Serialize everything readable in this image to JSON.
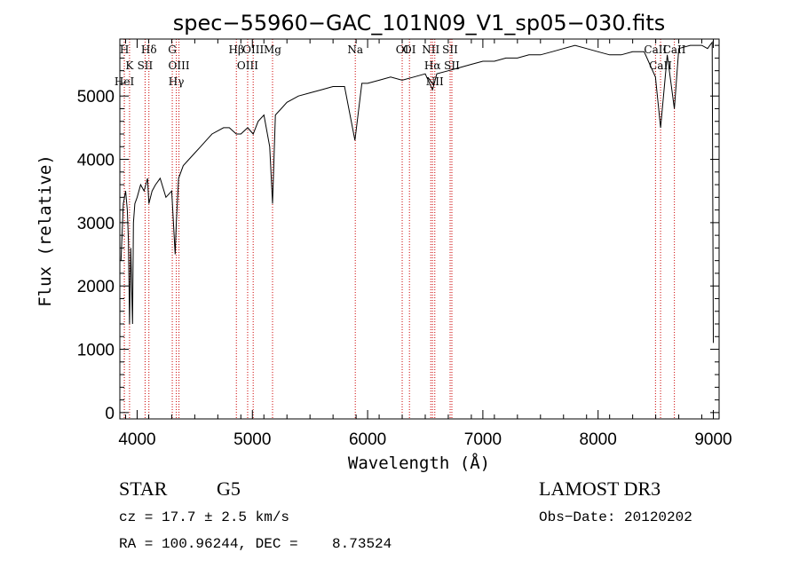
{
  "chart_data": {
    "type": "line",
    "title": "spec−55960−GAC_101N09_V1_sp05−030.fits",
    "xlabel": "Wavelength (Å)",
    "ylabel": "Flux (relative)",
    "xlim": [
      3850,
      9050
    ],
    "ylim": [
      -100,
      5900
    ],
    "x_ticks": [
      4000,
      5000,
      6000,
      7000,
      8000,
      9000
    ],
    "x_tick_labels": [
      "4000",
      "5000",
      "6000",
      "7000",
      "8000",
      "9000"
    ],
    "y_ticks": [
      0,
      1000,
      2000,
      3000,
      4000,
      5000
    ],
    "y_tick_labels": [
      "0",
      "1000",
      "2000",
      "3000",
      "4000",
      "5000"
    ],
    "grid": false,
    "line_color": "#000000",
    "marker_color": "#cc0000",
    "series": [
      {
        "name": "flux",
        "x": [
          3860,
          3880,
          3900,
          3915,
          3925,
          3934,
          3945,
          3960,
          3968,
          3980,
          4000,
          4030,
          4060,
          4090,
          4102,
          4130,
          4160,
          4200,
          4250,
          4300,
          4330,
          4340,
          4360,
          4400,
          4450,
          4500,
          4550,
          4600,
          4650,
          4700,
          4750,
          4800,
          4861,
          4900,
          4959,
          5007,
          5050,
          5100,
          5150,
          5175,
          5200,
          5250,
          5300,
          5400,
          5500,
          5600,
          5700,
          5800,
          5890,
          5950,
          6000,
          6100,
          6200,
          6300,
          6400,
          6500,
          6563,
          6600,
          6700,
          6800,
          6900,
          7000,
          7100,
          7200,
          7300,
          7400,
          7500,
          7600,
          7700,
          7800,
          7900,
          8000,
          8100,
          8200,
          8300,
          8400,
          8498,
          8542,
          8600,
          8662,
          8700,
          8800,
          8900,
          8950,
          8990,
          9000
        ],
        "y": [
          2400,
          3300,
          3500,
          3200,
          2700,
          1400,
          2600,
          1400,
          3000,
          3300,
          3400,
          3600,
          3500,
          3700,
          3300,
          3500,
          3600,
          3700,
          3400,
          3500,
          2500,
          3000,
          3700,
          3900,
          4000,
          4100,
          4200,
          4300,
          4400,
          4450,
          4500,
          4500,
          4400,
          4400,
          4500,
          4400,
          4600,
          4700,
          4200,
          3300,
          4700,
          4800,
          4900,
          5000,
          5050,
          5100,
          5150,
          5150,
          4300,
          5200,
          5200,
          5250,
          5300,
          5250,
          5300,
          5350,
          5100,
          5350,
          5400,
          5450,
          5500,
          5550,
          5550,
          5600,
          5600,
          5650,
          5650,
          5700,
          5750,
          5800,
          5750,
          5700,
          5650,
          5650,
          5700,
          5700,
          5300,
          4500,
          5650,
          4800,
          5750,
          5800,
          5800,
          5750,
          5850,
          1100
        ]
      }
    ],
    "line_markers": [
      {
        "label": "H",
        "x": 3889
      },
      {
        "label": "K",
        "x": 3934
      },
      {
        "label": "HeI",
        "x": 3889
      },
      {
        "label": "Hδ",
        "x": 4102
      },
      {
        "label": "SII",
        "x": 4069
      },
      {
        "label": "G",
        "x": 4305
      },
      {
        "label": "OIII",
        "x": 4363
      },
      {
        "label": "Hγ",
        "x": 4340
      },
      {
        "label": "Hβ",
        "x": 4861
      },
      {
        "label": "OIII",
        "x": 4959
      },
      {
        "label": "OIII",
        "x": 5007
      },
      {
        "label": "Mg",
        "x": 5175
      },
      {
        "label": "Na",
        "x": 5893
      },
      {
        "label": "OI",
        "x": 6300
      },
      {
        "label": "OI",
        "x": 6363
      },
      {
        "label": "NII",
        "x": 6548
      },
      {
        "label": "Hα",
        "x": 6563
      },
      {
        "label": "NII",
        "x": 6583
      },
      {
        "label": "SII",
        "x": 6716
      },
      {
        "label": "SII",
        "x": 6731
      },
      {
        "label": "CaII",
        "x": 8498
      },
      {
        "label": "CaII",
        "x": 8542
      },
      {
        "label": "CaII",
        "x": 8662
      }
    ]
  },
  "info": {
    "class": "STAR",
    "subclass": "G5",
    "survey": "LAMOST DR3",
    "cz": "cz = 17.7 ± 2.5 km/s",
    "obs_date": "Obs−Date: 20120202",
    "coords": "RA = 100.96244, DEC =    8.73524"
  }
}
